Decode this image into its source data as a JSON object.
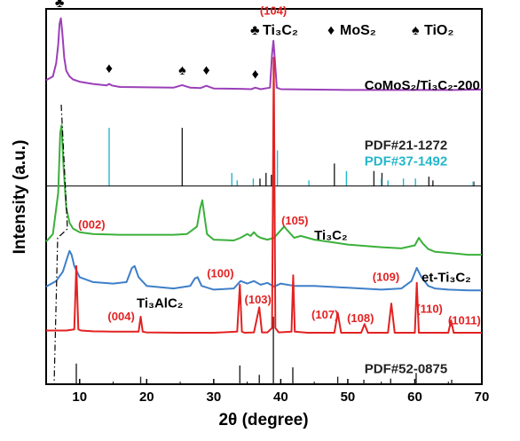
{
  "chart_data": {
    "type": "line",
    "title": "",
    "xlabel": "2θ (degree)",
    "ylabel": "Intensity (a.u.)",
    "xlim": [
      5,
      70
    ],
    "ylim": [
      0,
      1
    ],
    "xticks": [
      10,
      20,
      30,
      40,
      50,
      60,
      70
    ],
    "grid": false,
    "legend": {
      "placement": "top-right",
      "entries": [
        {
          "symbol": "♣",
          "label": "Ti₃C₂"
        },
        {
          "symbol": "♦",
          "label": "MoS₂"
        },
        {
          "symbol": "♠",
          "label": "TiO₂"
        }
      ]
    },
    "series": [
      {
        "name": "CoMoS₂/Ti₃C₂-200",
        "color": "#9b3fb8",
        "label_pos": [
          52.5,
          0.785
        ],
        "x": [
          5,
          6,
          6.5,
          6.8,
          7.0,
          7.2,
          7.4,
          7.7,
          8.0,
          8.5,
          9,
          10,
          12,
          14,
          14.4,
          14.8,
          16,
          20,
          24,
          25.3,
          26.5,
          28,
          28.9,
          30,
          34,
          35.6,
          36.2,
          37,
          38.4,
          38.7,
          38.9,
          39.1,
          39.4,
          40,
          44,
          50,
          56,
          62,
          66,
          70
        ],
        "y": [
          0.81,
          0.82,
          0.855,
          0.905,
          0.96,
          0.975,
          0.94,
          0.87,
          0.835,
          0.82,
          0.812,
          0.806,
          0.8,
          0.796,
          0.8,
          0.796,
          0.792,
          0.791,
          0.79,
          0.797,
          0.79,
          0.789,
          0.795,
          0.788,
          0.787,
          0.786,
          0.79,
          0.786,
          0.79,
          0.88,
          0.915,
          0.87,
          0.79,
          0.786,
          0.785,
          0.784,
          0.784,
          0.784,
          0.784,
          0.785
        ]
      },
      {
        "name": "Ti₃C₂",
        "color": "#3bb03b",
        "label_pos": [
          45,
          0.385
        ],
        "x": [
          5,
          6,
          6.8,
          7.1,
          7.3,
          7.6,
          8,
          8.5,
          9,
          10,
          12,
          16,
          20,
          24,
          26,
          27.5,
          28,
          28.3,
          28.6,
          29,
          30,
          33,
          34,
          35,
          35.5,
          36,
          36.5,
          37,
          38,
          39,
          40,
          40.5,
          41,
          42,
          43,
          45,
          50,
          55,
          58,
          60,
          60.6,
          61.2,
          62,
          63,
          65,
          68,
          70
        ],
        "y": [
          0.38,
          0.4,
          0.51,
          0.67,
          0.69,
          0.58,
          0.47,
          0.43,
          0.415,
          0.405,
          0.4,
          0.398,
          0.398,
          0.398,
          0.4,
          0.42,
          0.47,
          0.49,
          0.45,
          0.4,
          0.385,
          0.383,
          0.39,
          0.4,
          0.395,
          0.405,
          0.395,
          0.39,
          0.385,
          0.39,
          0.41,
          0.42,
          0.41,
          0.39,
          0.395,
          0.385,
          0.372,
          0.365,
          0.362,
          0.37,
          0.39,
          0.375,
          0.36,
          0.353,
          0.35,
          0.345,
          0.345
        ]
      },
      {
        "name": "et-Ti₃C₂",
        "color": "#3f7fc8",
        "label_pos": [
          61,
          0.273
        ],
        "x": [
          5,
          6.5,
          7.5,
          8.2,
          8.5,
          8.8,
          9.2,
          10,
          12,
          15,
          17,
          17.8,
          18.2,
          18.8,
          20,
          24,
          26.5,
          27.2,
          27.6,
          28.2,
          30,
          33,
          34,
          35,
          36,
          37,
          38,
          39,
          40,
          42,
          45,
          50,
          55,
          58,
          59.5,
          60.3,
          61,
          62,
          63,
          65,
          68,
          70
        ],
        "y": [
          0.26,
          0.275,
          0.3,
          0.34,
          0.355,
          0.345,
          0.315,
          0.285,
          0.272,
          0.268,
          0.272,
          0.31,
          0.315,
          0.285,
          0.262,
          0.255,
          0.262,
          0.282,
          0.285,
          0.262,
          0.252,
          0.255,
          0.275,
          0.268,
          0.275,
          0.265,
          0.27,
          0.26,
          0.268,
          0.262,
          0.262,
          0.257,
          0.252,
          0.255,
          0.275,
          0.31,
          0.285,
          0.262,
          0.255,
          0.252,
          0.25,
          0.25
        ]
      },
      {
        "name": "Ti₃AlC₂",
        "color": "#e32222",
        "label_pos": [
          18.5,
          0.205
        ],
        "x": [
          5,
          8,
          9.2,
          9.5,
          9.8,
          10.2,
          12,
          15,
          18.8,
          19.1,
          19.4,
          20,
          25,
          30,
          33.5,
          33.9,
          34.2,
          34.6,
          36,
          36.8,
          37.2,
          38,
          38.7,
          38.95,
          39.2,
          39.7,
          41.6,
          41.85,
          42.1,
          44,
          48,
          48.5,
          49,
          52,
          52.5,
          53,
          56,
          56.5,
          57,
          60,
          60.3,
          60.6,
          62,
          65,
          65.4,
          65.8,
          70
        ],
        "y": [
          0.143,
          0.143,
          0.146,
          0.315,
          0.146,
          0.143,
          0.141,
          0.14,
          0.14,
          0.18,
          0.14,
          0.138,
          0.137,
          0.137,
          0.14,
          0.265,
          0.14,
          0.137,
          0.138,
          0.205,
          0.138,
          0.138,
          0.15,
          0.87,
          0.15,
          0.138,
          0.14,
          0.29,
          0.14,
          0.137,
          0.137,
          0.19,
          0.137,
          0.137,
          0.16,
          0.137,
          0.137,
          0.215,
          0.137,
          0.137,
          0.27,
          0.137,
          0.137,
          0.137,
          0.17,
          0.137,
          0.137
        ]
      }
    ],
    "reference_patterns": [
      {
        "name": "PDF#21-1272",
        "color": "#222222",
        "baseline": 0.528,
        "label_pos": [
          52.5,
          0.625
        ],
        "x": [
          25.3,
          36.9,
          37.8,
          38.6,
          48.0,
          53.9,
          55.1,
          62.1,
          62.7,
          68.8
        ],
        "h": [
          0.155,
          0.02,
          0.035,
          0.03,
          0.06,
          0.04,
          0.035,
          0.025,
          0.015,
          0.012
        ]
      },
      {
        "name": "PDF#37-1492",
        "color": "#23b7c9",
        "baseline": 0.528,
        "label_pos": [
          52.5,
          0.583
        ],
        "x": [
          14.4,
          32.7,
          33.5,
          35.9,
          39.5,
          44.2,
          49.8,
          55.0,
          56.0,
          58.3,
          60.1,
          68.7
        ],
        "h": [
          0.155,
          0.035,
          0.015,
          0.02,
          0.095,
          0.015,
          0.04,
          0.02,
          0.015,
          0.02,
          0.02,
          0.012
        ]
      },
      {
        "name": "PDF#52-0875",
        "color": "#222222",
        "baseline": 0.0,
        "label_pos": [
          52.5,
          0.03
        ],
        "x": [
          9.5,
          19.1,
          33.9,
          36.8,
          38.9,
          41.8,
          48.5,
          52.4,
          56.4,
          60.2,
          65.5
        ],
        "h": [
          0.055,
          0.02,
          0.05,
          0.025,
          0.18,
          0.045,
          0.02,
          0.012,
          0.015,
          0.03,
          0.012
        ]
      }
    ],
    "annotations": [
      {
        "text": "(104)",
        "x": 38.9,
        "y": 0.985
      },
      {
        "text": "(002)",
        "x": 11.8,
        "y": 0.415
      },
      {
        "text": "(105)",
        "x": 42.1,
        "y": 0.425
      },
      {
        "text": "(100)",
        "x": 31.0,
        "y": 0.285
      },
      {
        "text": "(004)",
        "x": 16.2,
        "y": 0.17
      },
      {
        "text": "(103)",
        "x": 36.6,
        "y": 0.215
      },
      {
        "text": "(107)",
        "x": 46.6,
        "y": 0.175
      },
      {
        "text": "(108)",
        "x": 51.9,
        "y": 0.165
      },
      {
        "text": "(109)",
        "x": 55.7,
        "y": 0.275
      },
      {
        "text": "(110)",
        "x": 62.2,
        "y": 0.19
      },
      {
        "text": "(1011)",
        "x": 67.4,
        "y": 0.16
      }
    ],
    "phase_markers": [
      {
        "symbol": "♣",
        "x": 7.0,
        "y": 1.005
      },
      {
        "symbol": "♦",
        "x": 14.4,
        "y": 0.83
      },
      {
        "symbol": "♠",
        "x": 25.3,
        "y": 0.825
      },
      {
        "symbol": "♦",
        "x": 28.9,
        "y": 0.825
      },
      {
        "symbol": "♦",
        "x": 36.2,
        "y": 0.815
      }
    ]
  }
}
